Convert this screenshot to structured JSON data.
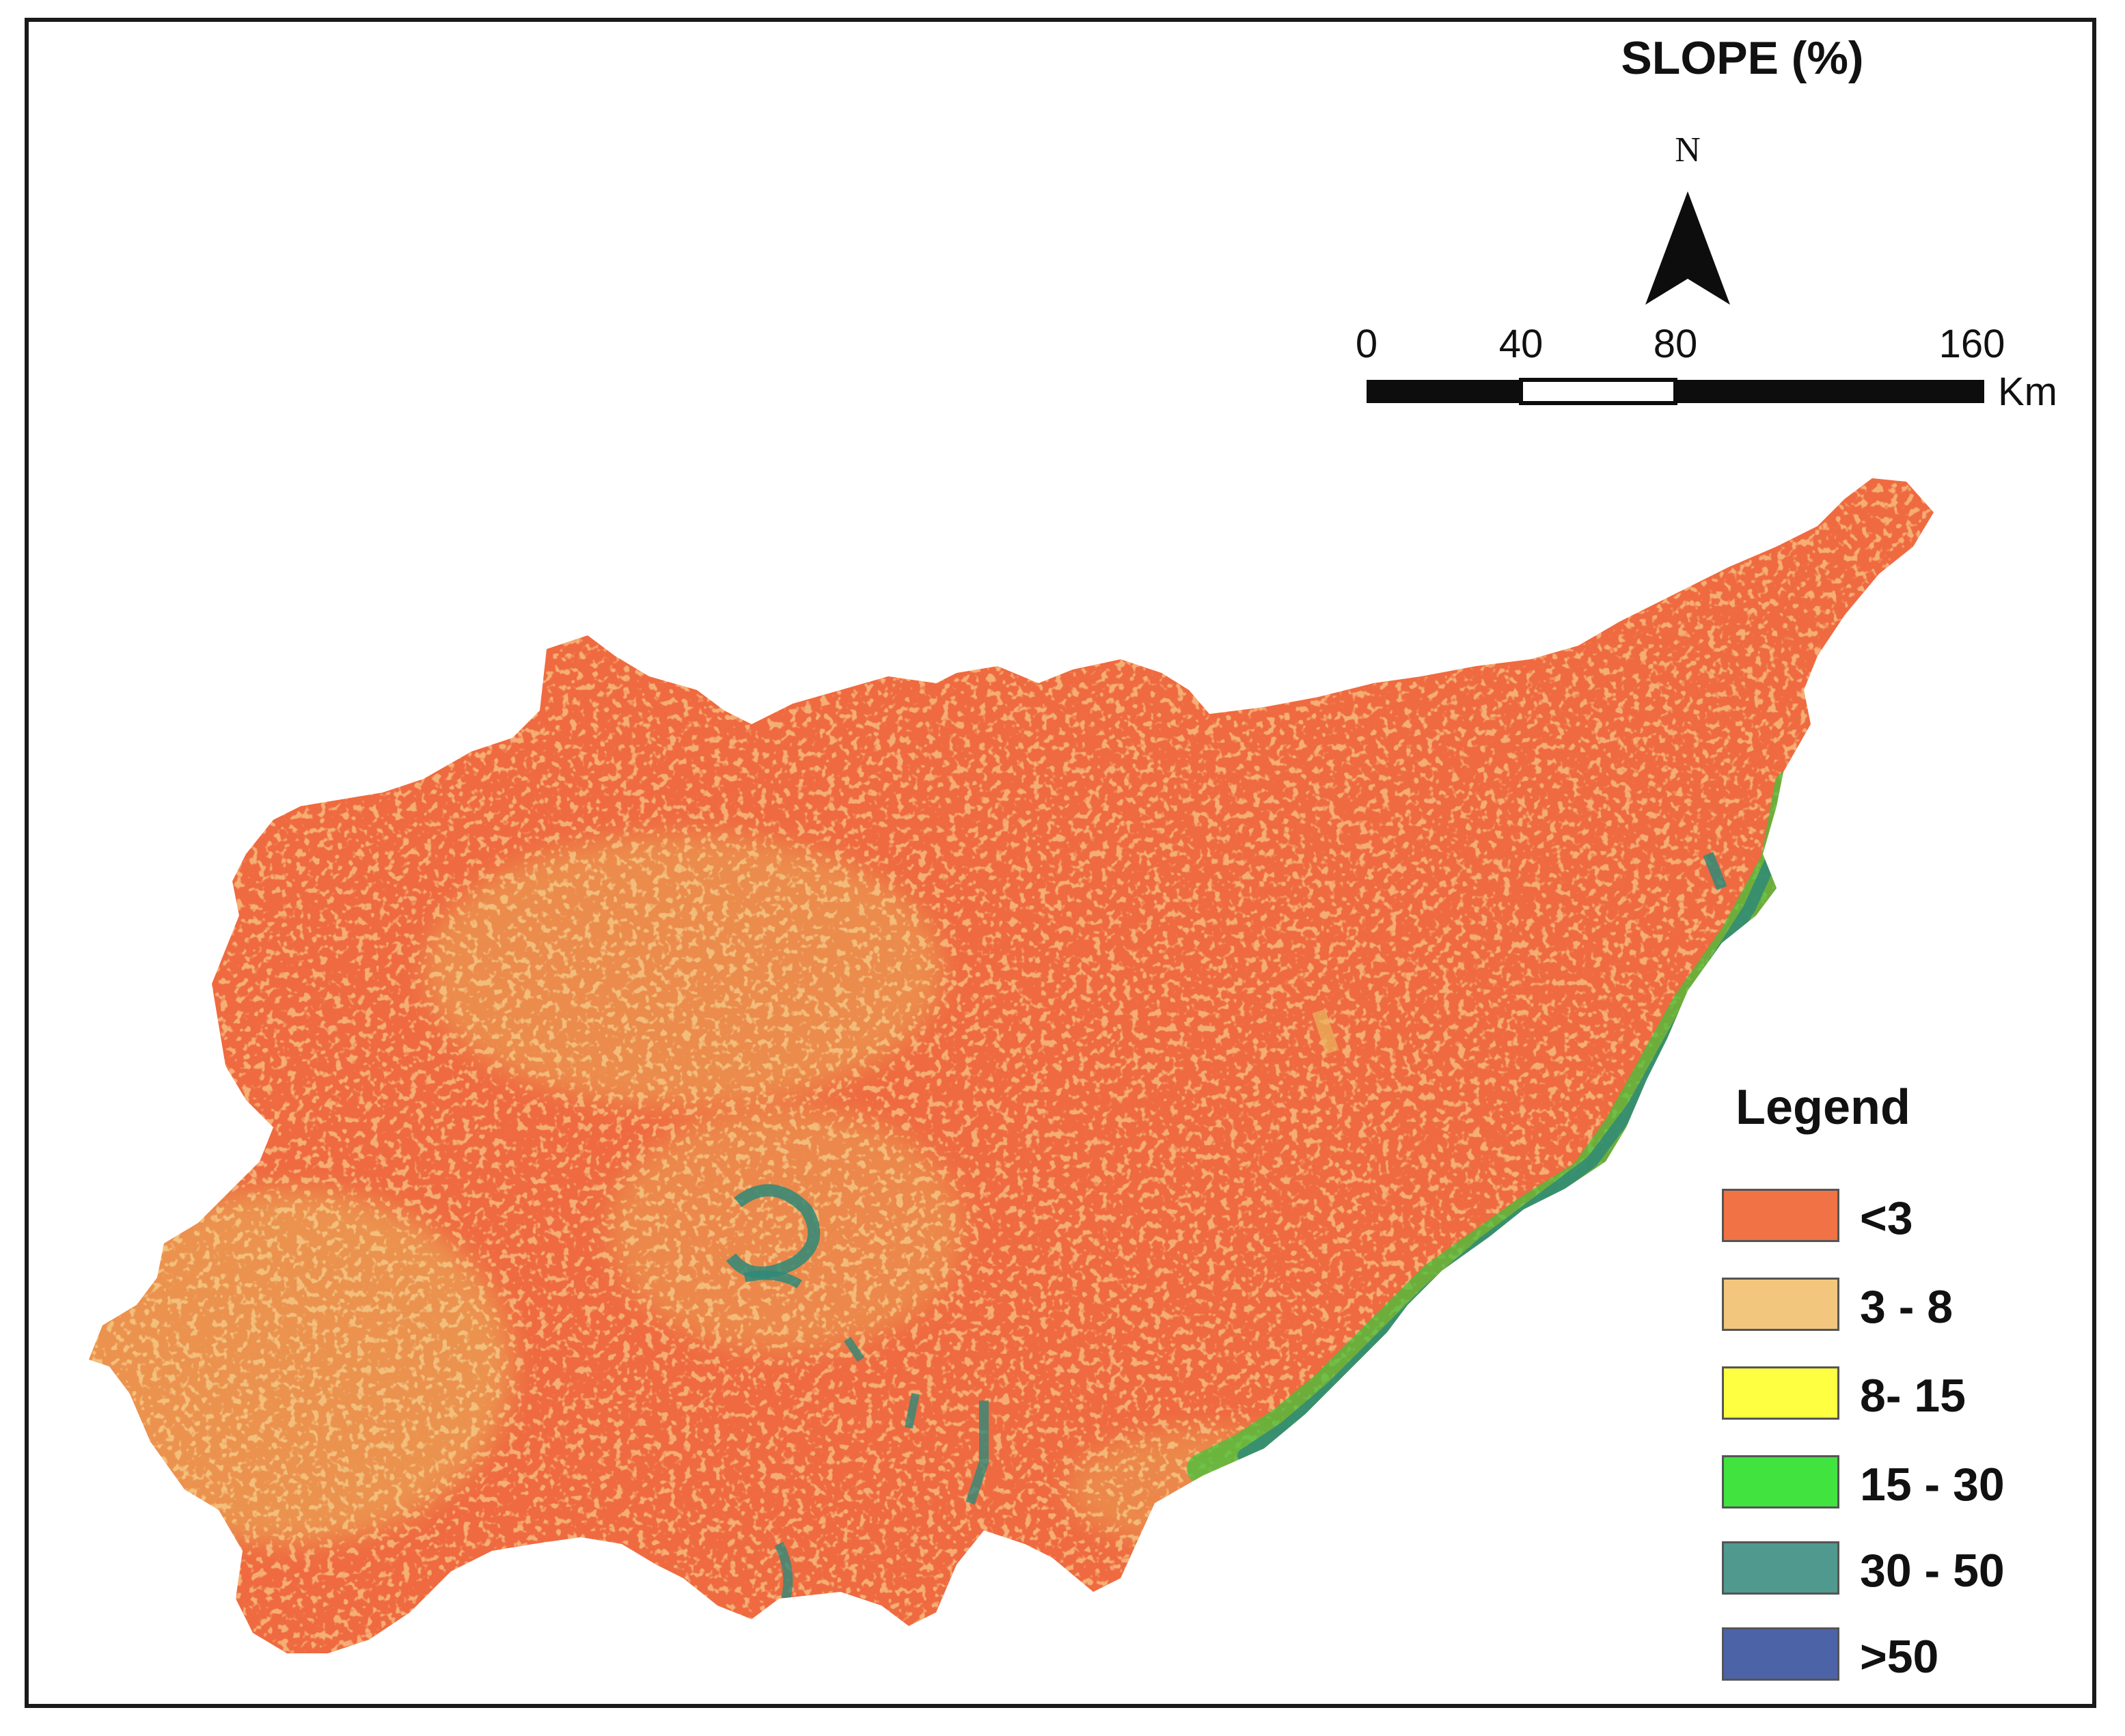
{
  "map": {
    "title": "SLOPE (%)",
    "north_label": "N",
    "scale_bar": {
      "ticks": [
        "0",
        "40",
        "80",
        "160"
      ],
      "units": "Km"
    },
    "legend": {
      "title": "Legend",
      "classes": [
        {
          "label": "<3",
          "color": "#f07245"
        },
        {
          "label": "3 - 8",
          "color": "#f2c77d"
        },
        {
          "label": "8- 15",
          "color": "#ffff42"
        },
        {
          "label": "15 - 30",
          "color": "#41e33f"
        },
        {
          "label": "30 - 50",
          "color": "#4f998e"
        },
        {
          "label": ">50",
          "color": "#4d63a8"
        }
      ]
    }
  }
}
